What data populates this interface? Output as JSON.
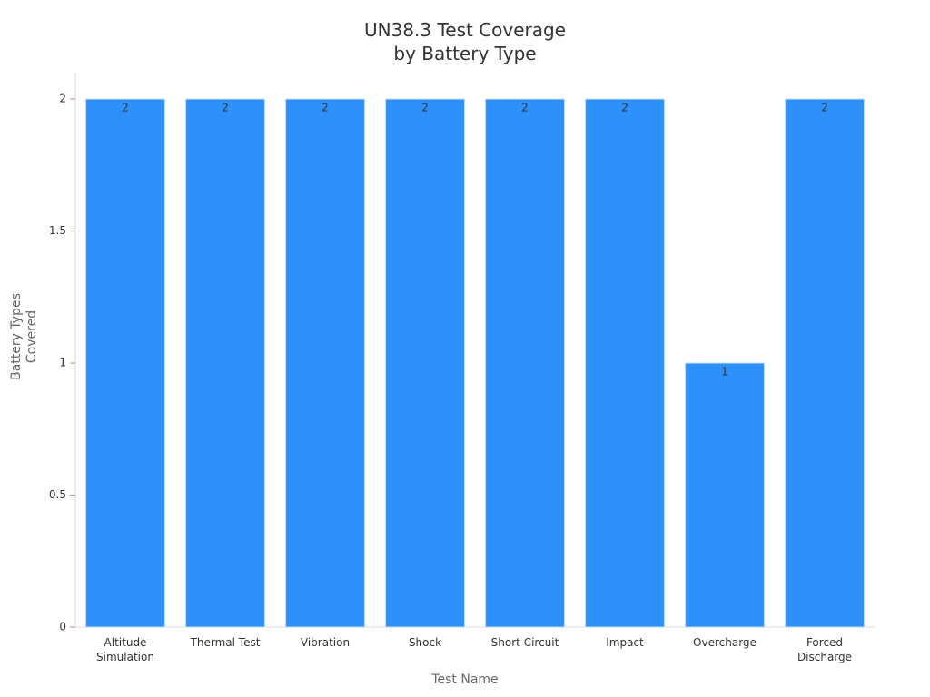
{
  "chart_data": {
    "type": "bar",
    "title": "UN38.3 Test Coverage by Battery Type",
    "x_label": "Test Name",
    "y_label": "Battery Types Covered",
    "categories": [
      "Altitude Simulation",
      "Thermal Test",
      "Vibration",
      "Shock",
      "Short Circuit",
      "Impact",
      "Overcharge",
      "Forced Discharge"
    ],
    "values": [
      2,
      2,
      2,
      2,
      2,
      2,
      1,
      2
    ],
    "color": "#2e90fa",
    "ylim": [
      0,
      2.1
    ],
    "yticks": [
      0,
      0.5,
      1,
      1.5,
      2
    ],
    "grid": false
  }
}
